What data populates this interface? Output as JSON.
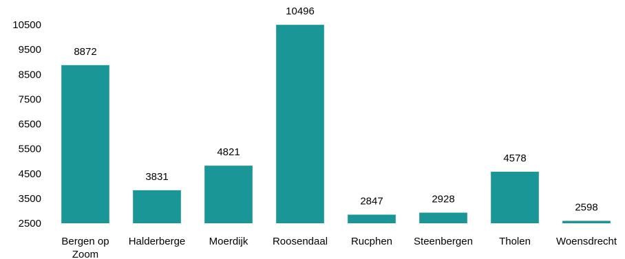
{
  "chart_data": {
    "type": "bar",
    "categories": [
      "Bergen op Zoom",
      "Halderberge",
      "Moerdijk",
      "Roosendaal",
      "Rucphen",
      "Steenbergen",
      "Tholen",
      "Woensdrecht"
    ],
    "category_lines": [
      [
        "Bergen op",
        "Zoom"
      ],
      [
        "Halderberge"
      ],
      [
        "Moerdijk"
      ],
      [
        "Roosendaal"
      ],
      [
        "Rucphen"
      ],
      [
        "Steenbergen"
      ],
      [
        "Tholen"
      ],
      [
        "Woensdrecht"
      ]
    ],
    "values": [
      8872,
      3831,
      4821,
      10496,
      2847,
      2928,
      4578,
      2598
    ],
    "data_labels": [
      "8872",
      "3831",
      "4821",
      "10496",
      "2847",
      "2928",
      "4578",
      "2598"
    ],
    "yticks": [
      2500,
      3500,
      4500,
      5500,
      6500,
      7500,
      8500,
      9500,
      10500
    ],
    "ytick_labels": [
      "2500",
      "3500",
      "4500",
      "5500",
      "6500",
      "7500",
      "8500",
      "9500",
      "10500"
    ],
    "ylim": [
      2500,
      10500
    ],
    "title": "",
    "xlabel": "",
    "ylabel": "",
    "grid": false,
    "legend": "none",
    "bar_color": "#1a9696"
  }
}
